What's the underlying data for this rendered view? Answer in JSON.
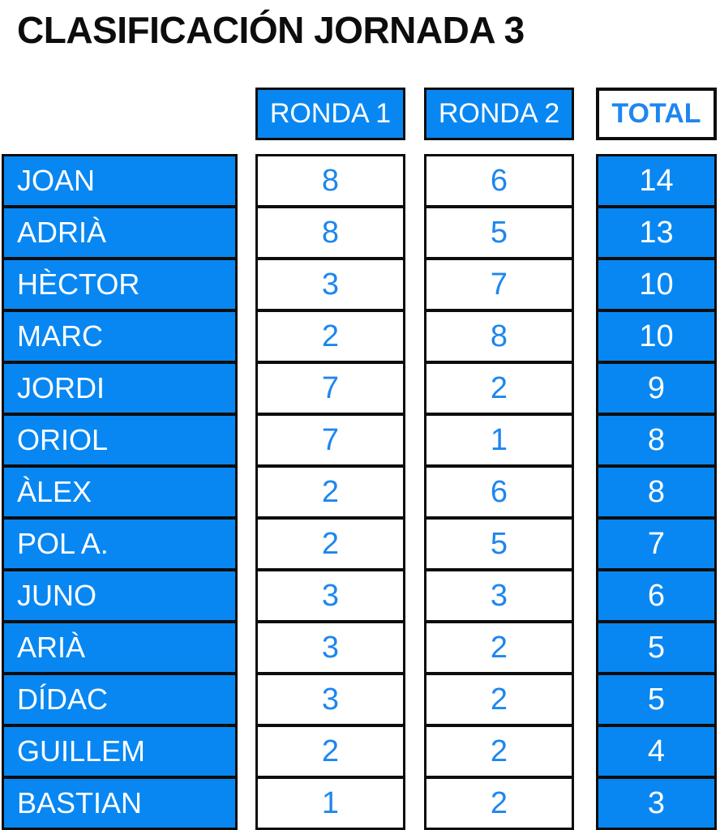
{
  "chart_data": {
    "type": "table",
    "title": "CLASIFICACIÓN JORNADA 3",
    "columns": [
      "RONDA 1",
      "RONDA 2",
      "TOTAL"
    ],
    "rows": [
      {
        "name": "JOAN",
        "ronda1": 8,
        "ronda2": 6,
        "total": 14
      },
      {
        "name": "ADRIÀ",
        "ronda1": 8,
        "ronda2": 5,
        "total": 13
      },
      {
        "name": "HÈCTOR",
        "ronda1": 3,
        "ronda2": 7,
        "total": 10
      },
      {
        "name": "MARC",
        "ronda1": 2,
        "ronda2": 8,
        "total": 10
      },
      {
        "name": "JORDI",
        "ronda1": 7,
        "ronda2": 2,
        "total": 9
      },
      {
        "name": "ORIOL",
        "ronda1": 7,
        "ronda2": 1,
        "total": 8
      },
      {
        "name": "ÀLEX",
        "ronda1": 2,
        "ronda2": 6,
        "total": 8
      },
      {
        "name": "POL A.",
        "ronda1": 2,
        "ronda2": 5,
        "total": 7
      },
      {
        "name": "JUNO",
        "ronda1": 3,
        "ronda2": 3,
        "total": 6
      },
      {
        "name": "ARIÀ",
        "ronda1": 3,
        "ronda2": 2,
        "total": 5
      },
      {
        "name": "DÍDAC",
        "ronda1": 3,
        "ronda2": 2,
        "total": 5
      },
      {
        "name": "GUILLEM",
        "ronda1": 2,
        "ronda2": 2,
        "total": 4
      },
      {
        "name": "BASTIAN",
        "ronda1": 1,
        "ronda2": 2,
        "total": 3
      }
    ],
    "layout_hints": {
      "name_column_header": "",
      "grid": "per-cell black borders, blue name and total columns, white round-score columns"
    }
  },
  "colors": {
    "accent_blue": "#0887F2",
    "number_blue": "#1E86EE",
    "border_black": "#0D0D0D",
    "white": "#FFFFFF"
  }
}
